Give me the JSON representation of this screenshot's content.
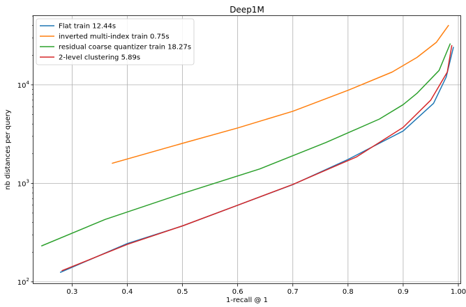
{
  "chart_data": {
    "type": "line",
    "title": "Deep1M",
    "xlabel": "1-recall @ 1",
    "ylabel": "nb distances per query",
    "xlim": [
      0.23,
      1.005
    ],
    "ylim": [
      95,
      50000
    ],
    "yscale": "log",
    "grid": true,
    "legend_position": "top-left",
    "x_ticks": [
      {
        "value": 0.3,
        "label": "0.3"
      },
      {
        "value": 0.4,
        "label": "0.4"
      },
      {
        "value": 0.5,
        "label": "0.5"
      },
      {
        "value": 0.6,
        "label": "0.6"
      },
      {
        "value": 0.7,
        "label": "0.7"
      },
      {
        "value": 0.8,
        "label": "0.8"
      },
      {
        "value": 0.9,
        "label": "0.9"
      },
      {
        "value": 1.0,
        "label": "1.00"
      }
    ],
    "y_ticks": [
      {
        "value": 100,
        "base": "10",
        "exp": "2"
      },
      {
        "value": 1000,
        "base": "10",
        "exp": "3"
      },
      {
        "value": 10000,
        "base": "10",
        "exp": "4"
      }
    ],
    "series": [
      {
        "name": "Flat train 12.44s",
        "color": "#1f77b4",
        "points": [
          [
            0.279,
            125
          ],
          [
            0.4,
            245
          ],
          [
            0.5,
            370
          ],
          [
            0.6,
            600
          ],
          [
            0.7,
            970
          ],
          [
            0.8,
            1750
          ],
          [
            0.9,
            3400
          ],
          [
            0.955,
            6500
          ],
          [
            0.978,
            12000
          ],
          [
            0.991,
            24000
          ]
        ]
      },
      {
        "name": "inverted multi-index train 0.75s",
        "color": "#ff7f0e",
        "points": [
          [
            0.373,
            1600
          ],
          [
            0.5,
            2550
          ],
          [
            0.6,
            3650
          ],
          [
            0.7,
            5400
          ],
          [
            0.8,
            8800
          ],
          [
            0.88,
            13500
          ],
          [
            0.925,
            19000
          ],
          [
            0.96,
            27000
          ],
          [
            0.982,
            40000
          ]
        ]
      },
      {
        "name": "residual coarse quantizer train 18.27s",
        "color": "#2ca02c",
        "points": [
          [
            0.245,
            232
          ],
          [
            0.36,
            430
          ],
          [
            0.5,
            790
          ],
          [
            0.64,
            1400
          ],
          [
            0.76,
            2600
          ],
          [
            0.857,
            4500
          ],
          [
            0.9,
            6300
          ],
          [
            0.925,
            8200
          ],
          [
            0.965,
            14000
          ],
          [
            0.985,
            26000
          ]
        ]
      },
      {
        "name": "2-level clustering 5.89s",
        "color": "#d62728",
        "points": [
          [
            0.282,
            130
          ],
          [
            0.4,
            240
          ],
          [
            0.5,
            370
          ],
          [
            0.6,
            600
          ],
          [
            0.7,
            975
          ],
          [
            0.815,
            1850
          ],
          [
            0.9,
            3700
          ],
          [
            0.95,
            7000
          ],
          [
            0.98,
            13500
          ],
          [
            0.988,
            25000
          ]
        ]
      }
    ]
  }
}
